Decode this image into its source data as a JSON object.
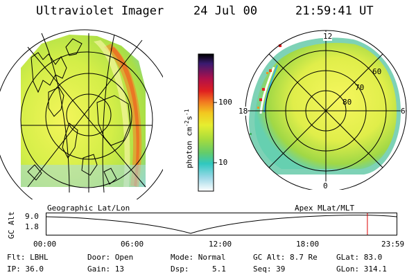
{
  "header": {
    "title": "Ultraviolet Imager",
    "date": "24 Jul 00",
    "time": "21:59:41 UT"
  },
  "left_panel": {
    "caption": "Geographic Lat/Lon"
  },
  "right_panel": {
    "caption": "Apex MLat/MLT",
    "mlt_labels": [
      "12",
      "18",
      "6",
      "0"
    ],
    "mlat_labels": [
      "60",
      "70",
      "80"
    ]
  },
  "colorbar": {
    "label": "photon cm",
    "label_exp1": "-2",
    "label_s": "s",
    "label_exp2": "-1",
    "ticks": [
      "100",
      "10"
    ]
  },
  "timeline": {
    "ylabel": "GC Alt",
    "y_ticks": [
      "9.0",
      "1.8"
    ],
    "x_ticks": [
      "00:00",
      "06:00",
      "12:00",
      "18:00",
      "23:59"
    ],
    "current_time_fraction": 0.9166,
    "marker_color": "#dd0000"
  },
  "info": {
    "flt": "Flt: LBHL",
    "ip": "IP: 36.0",
    "door": "Door: Open",
    "gain": "Gain: 13",
    "mode": "Mode: Normal",
    "dsp_label": "Dsp:",
    "dsp_value": "5.1",
    "gcalt": "GC Alt: 8.7 Re",
    "seq": "Seq: 39",
    "glat": "GLat:  83.0",
    "glon": "GLon: 314.1"
  }
}
